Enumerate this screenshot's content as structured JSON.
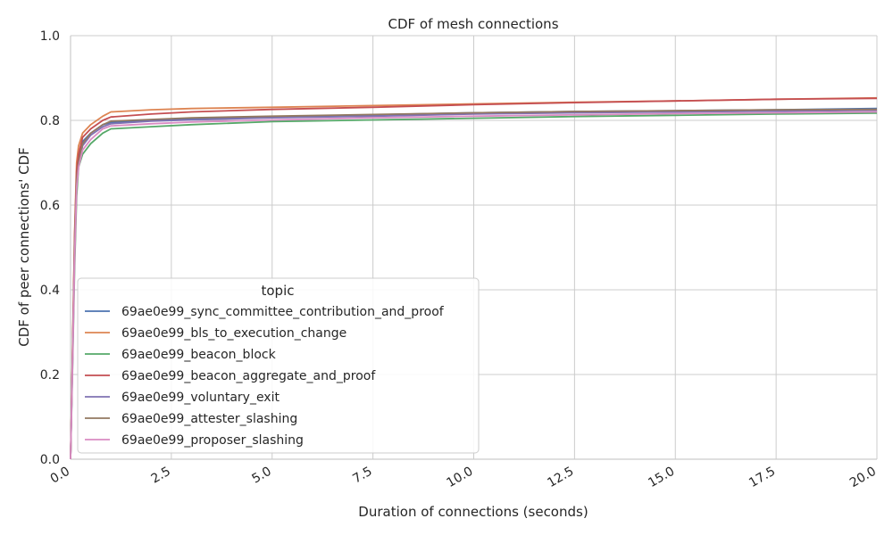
{
  "chart_data": {
    "type": "line",
    "title": "CDF of mesh connections",
    "xlabel": "Duration of connections (seconds)",
    "ylabel": "CDF of peer connections' CDF",
    "xlim": [
      0,
      20
    ],
    "ylim": [
      0,
      1
    ],
    "x_ticks": [
      "0.0",
      "2.5",
      "5.0",
      "7.5",
      "10.0",
      "12.5",
      "15.0",
      "17.5",
      "20.0"
    ],
    "y_ticks": [
      "0.0",
      "0.2",
      "0.4",
      "0.6",
      "0.8",
      "1.0"
    ],
    "grid": true,
    "legend_title": "topic",
    "legend_position": "lower-left",
    "series": [
      {
        "name": "69ae0e99_sync_committee_contribution_and_proof",
        "color": "#4c72b0",
        "x": [
          0,
          0.05,
          0.1,
          0.15,
          0.2,
          0.3,
          0.5,
          0.8,
          1.0,
          2.0,
          3.0,
          5.0,
          7.5,
          10.0,
          12.5,
          15.0,
          17.5,
          20.0
        ],
        "y": [
          0,
          0.25,
          0.5,
          0.66,
          0.71,
          0.75,
          0.77,
          0.79,
          0.795,
          0.8,
          0.803,
          0.808,
          0.813,
          0.818,
          0.821,
          0.823,
          0.825,
          0.828
        ]
      },
      {
        "name": "69ae0e99_bls_to_execution_change",
        "color": "#dd8452",
        "x": [
          0,
          0.05,
          0.1,
          0.15,
          0.2,
          0.3,
          0.5,
          0.8,
          1.0,
          2.0,
          3.0,
          5.0,
          7.5,
          10.0,
          12.5,
          15.0,
          17.5,
          20.0
        ],
        "y": [
          0,
          0.27,
          0.53,
          0.7,
          0.74,
          0.77,
          0.79,
          0.81,
          0.82,
          0.825,
          0.828,
          0.831,
          0.835,
          0.839,
          0.843,
          0.846,
          0.85,
          0.853
        ]
      },
      {
        "name": "69ae0e99_beacon_block",
        "color": "#55a868",
        "x": [
          0,
          0.05,
          0.1,
          0.15,
          0.2,
          0.3,
          0.5,
          0.8,
          1.0,
          2.0,
          3.0,
          5.0,
          7.5,
          10.0,
          12.5,
          15.0,
          17.5,
          20.0
        ],
        "y": [
          0,
          0.22,
          0.45,
          0.62,
          0.69,
          0.72,
          0.745,
          0.77,
          0.78,
          0.785,
          0.79,
          0.797,
          0.801,
          0.805,
          0.809,
          0.812,
          0.815,
          0.817
        ]
      },
      {
        "name": "69ae0e99_beacon_aggregate_and_proof",
        "color": "#c44e52",
        "x": [
          0,
          0.05,
          0.1,
          0.15,
          0.2,
          0.3,
          0.5,
          0.8,
          1.0,
          2.0,
          3.0,
          5.0,
          7.5,
          10.0,
          12.5,
          15.0,
          17.5,
          20.0
        ],
        "y": [
          0,
          0.26,
          0.52,
          0.68,
          0.72,
          0.76,
          0.78,
          0.8,
          0.808,
          0.815,
          0.82,
          0.826,
          0.831,
          0.837,
          0.842,
          0.846,
          0.85,
          0.852
        ]
      },
      {
        "name": "69ae0e99_voluntary_exit",
        "color": "#8172b3",
        "x": [
          0,
          0.05,
          0.1,
          0.15,
          0.2,
          0.3,
          0.5,
          0.8,
          1.0,
          2.0,
          3.0,
          5.0,
          7.5,
          10.0,
          12.5,
          15.0,
          17.5,
          20.0
        ],
        "y": [
          0,
          0.24,
          0.49,
          0.65,
          0.7,
          0.74,
          0.765,
          0.785,
          0.792,
          0.798,
          0.801,
          0.806,
          0.81,
          0.815,
          0.818,
          0.82,
          0.822,
          0.824
        ]
      },
      {
        "name": "69ae0e99_attester_slashing",
        "color": "#937860",
        "x": [
          0,
          0.05,
          0.1,
          0.15,
          0.2,
          0.3,
          0.5,
          0.8,
          1.0,
          2.0,
          3.0,
          5.0,
          7.5,
          10.0,
          12.5,
          15.0,
          17.5,
          20.0
        ],
        "y": [
          0,
          0.25,
          0.5,
          0.66,
          0.7,
          0.745,
          0.77,
          0.79,
          0.798,
          0.802,
          0.806,
          0.81,
          0.814,
          0.818,
          0.821,
          0.823,
          0.825,
          0.826
        ]
      },
      {
        "name": "69ae0e99_proposer_slashing",
        "color": "#da8bc3",
        "x": [
          0,
          0.05,
          0.1,
          0.15,
          0.2,
          0.3,
          0.5,
          0.8,
          1.0,
          2.0,
          3.0,
          5.0,
          7.5,
          10.0,
          12.5,
          15.0,
          17.5,
          20.0
        ],
        "y": [
          0,
          0.23,
          0.47,
          0.64,
          0.69,
          0.73,
          0.755,
          0.78,
          0.787,
          0.792,
          0.796,
          0.801,
          0.806,
          0.81,
          0.813,
          0.816,
          0.818,
          0.82
        ]
      }
    ]
  }
}
